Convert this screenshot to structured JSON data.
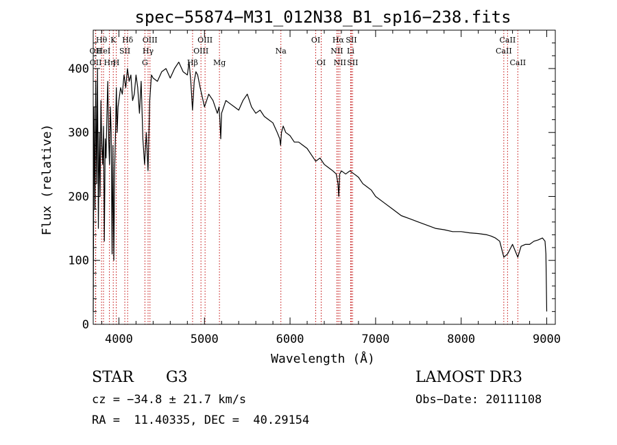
{
  "chart_data": {
    "type": "line",
    "title": "spec−55874−M31_012N38_B1_sp16−238.fits",
    "xlabel": "Wavelength (Å)",
    "ylabel": "Flux (relative)",
    "xlim": [
      3700,
      9100
    ],
    "ylim": [
      0,
      460
    ],
    "xticks": [
      4000,
      5000,
      6000,
      7000,
      8000,
      9000
    ],
    "yticks": [
      0,
      100,
      200,
      300,
      400
    ],
    "grid": false,
    "series": [
      {
        "name": "spectrum",
        "x": [
          3700,
          3710,
          3720,
          3730,
          3740,
          3750,
          3760,
          3770,
          3780,
          3790,
          3800,
          3810,
          3820,
          3830,
          3840,
          3850,
          3860,
          3870,
          3880,
          3890,
          3900,
          3910,
          3920,
          3930,
          3940,
          3950,
          3960,
          3970,
          3980,
          3990,
          4000,
          4020,
          4040,
          4060,
          4080,
          4100,
          4120,
          4140,
          4160,
          4180,
          4200,
          4220,
          4240,
          4260,
          4280,
          4300,
          4320,
          4340,
          4360,
          4380,
          4400,
          4450,
          4500,
          4550,
          4600,
          4650,
          4700,
          4750,
          4800,
          4820,
          4840,
          4860,
          4880,
          4900,
          4920,
          4950,
          5000,
          5050,
          5100,
          5150,
          5170,
          5180,
          5190,
          5200,
          5250,
          5300,
          5350,
          5400,
          5450,
          5500,
          5550,
          5600,
          5650,
          5700,
          5750,
          5800,
          5850,
          5880,
          5890,
          5900,
          5920,
          5950,
          6000,
          6050,
          6100,
          6150,
          6200,
          6250,
          6300,
          6350,
          6400,
          6450,
          6500,
          6540,
          6560,
          6570,
          6580,
          6600,
          6650,
          6700,
          6750,
          6800,
          6850,
          6900,
          6950,
          7000,
          7100,
          7200,
          7300,
          7400,
          7500,
          7600,
          7700,
          7800,
          7900,
          8000,
          8100,
          8200,
          8300,
          8350,
          8400,
          8450,
          8498,
          8542,
          8600,
          8662,
          8700,
          8750,
          8800,
          8850,
          8900,
          8950,
          8980,
          8990,
          9000
        ],
        "y": [
          20,
          340,
          180,
          380,
          220,
          400,
          150,
          300,
          200,
          350,
          280,
          250,
          310,
          130,
          290,
          260,
          330,
          380,
          290,
          250,
          340,
          300,
          110,
          280,
          100,
          240,
          300,
          370,
          300,
          340,
          350,
          370,
          360,
          390,
          370,
          400,
          380,
          390,
          350,
          360,
          390,
          370,
          330,
          380,
          290,
          250,
          300,
          240,
          350,
          390,
          385,
          380,
          395,
          400,
          385,
          400,
          410,
          395,
          390,
          410,
          380,
          335,
          380,
          395,
          390,
          370,
          340,
          360,
          350,
          330,
          340,
          320,
          290,
          330,
          350,
          345,
          340,
          335,
          350,
          360,
          340,
          330,
          335,
          325,
          320,
          315,
          300,
          290,
          280,
          300,
          310,
          300,
          295,
          285,
          285,
          280,
          275,
          265,
          255,
          260,
          250,
          245,
          240,
          235,
          220,
          200,
          235,
          240,
          235,
          240,
          235,
          230,
          220,
          215,
          210,
          200,
          190,
          180,
          170,
          165,
          160,
          155,
          150,
          148,
          145,
          145,
          143,
          142,
          140,
          138,
          135,
          130,
          105,
          110,
          125,
          105,
          122,
          125,
          125,
          130,
          132,
          135,
          130,
          110,
          20
        ]
      }
    ],
    "lines": [
      {
        "name": "Hθ",
        "x": 3797,
        "row": 1
      },
      {
        "name": "OII",
        "x": 3727,
        "row": 2
      },
      {
        "name": "OII",
        "x": 3729,
        "row": 3
      },
      {
        "name": "HeI",
        "x": 3820,
        "row": 2
      },
      {
        "name": "Hη",
        "x": 3889,
        "row": 3
      },
      {
        "name": "K",
        "x": 3934,
        "row": 1
      },
      {
        "name": "H",
        "x": 3969,
        "row": 3
      },
      {
        "name": "SII",
        "x": 4069,
        "row": 2
      },
      {
        "name": "Hδ",
        "x": 4102,
        "row": 1
      },
      {
        "name": "G",
        "x": 4304,
        "row": 3
      },
      {
        "name": "Hγ",
        "x": 4341,
        "row": 2
      },
      {
        "name": "OIII",
        "x": 4363,
        "row": 1
      },
      {
        "name": "Hβ",
        "x": 4861,
        "row": 3
      },
      {
        "name": "OIII",
        "x": 4959,
        "row": 2
      },
      {
        "name": "OIII",
        "x": 5007,
        "row": 1
      },
      {
        "name": "Mg",
        "x": 5175,
        "row": 3
      },
      {
        "name": "Na",
        "x": 5893,
        "row": 2
      },
      {
        "name": "OI",
        "x": 6300,
        "row": 1
      },
      {
        "name": "OI",
        "x": 6364,
        "row": 3
      },
      {
        "name": "NII",
        "x": 6548,
        "row": 2
      },
      {
        "name": "Hα",
        "x": 6563,
        "row": 1
      },
      {
        "name": "NII",
        "x": 6583,
        "row": 3
      },
      {
        "name": "Li",
        "x": 6708,
        "row": 2
      },
      {
        "name": "SII",
        "x": 6716,
        "row": 1
      },
      {
        "name": "SII",
        "x": 6731,
        "row": 3
      },
      {
        "name": "CaII",
        "x": 8498,
        "row": 2
      },
      {
        "name": "CaII",
        "x": 8542,
        "row": 1
      },
      {
        "name": "CaII",
        "x": 8662,
        "row": 3
      }
    ]
  },
  "info": {
    "object_class": "STAR",
    "subclass": "G3",
    "survey": "LAMOST DR3",
    "redshift": "cz = −34.8 ± 21.7 km/s",
    "obs_date": "Obs−Date: 20111108",
    "coords": "RA =  11.40335, DEC =  40.29154"
  }
}
